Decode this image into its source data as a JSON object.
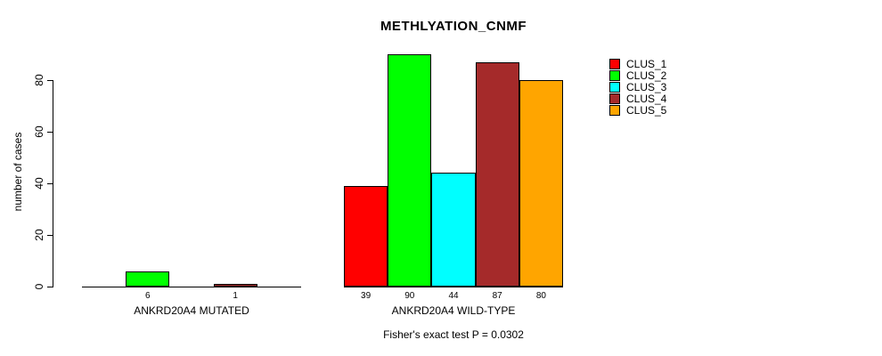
{
  "chart_data": {
    "type": "bar",
    "title": "METHLYATION_CNMF",
    "ylabel": "number of cases",
    "xlabel": "",
    "ylim": [
      0,
      90
    ],
    "yticks": [
      0,
      20,
      40,
      60,
      80
    ],
    "grid": false,
    "legend_position": "top-right",
    "group_labels": [
      "ANKRD20A4 MUTATED",
      "ANKRD20A4 WILD-TYPE"
    ],
    "series": [
      {
        "name": "CLUS_1",
        "color": "#ff0000",
        "values": [
          0,
          39
        ]
      },
      {
        "name": "CLUS_2",
        "color": "#00ff00",
        "values": [
          6,
          90
        ]
      },
      {
        "name": "CLUS_3",
        "color": "#00ffff",
        "values": [
          0,
          44
        ]
      },
      {
        "name": "CLUS_4",
        "color": "#a52a2a",
        "values": [
          1,
          87
        ]
      },
      {
        "name": "CLUS_5",
        "color": "#ffa500",
        "values": [
          0,
          80
        ]
      }
    ],
    "bar_value_labels": {
      "mutated": [
        6,
        1
      ],
      "wild_type": [
        39,
        90,
        44,
        87,
        80
      ]
    },
    "annotation": "Fisher's exact test P = 0.0302",
    "axis_color": "#000000",
    "bar_border_color": "#000000",
    "background_color": "#ffffff"
  }
}
